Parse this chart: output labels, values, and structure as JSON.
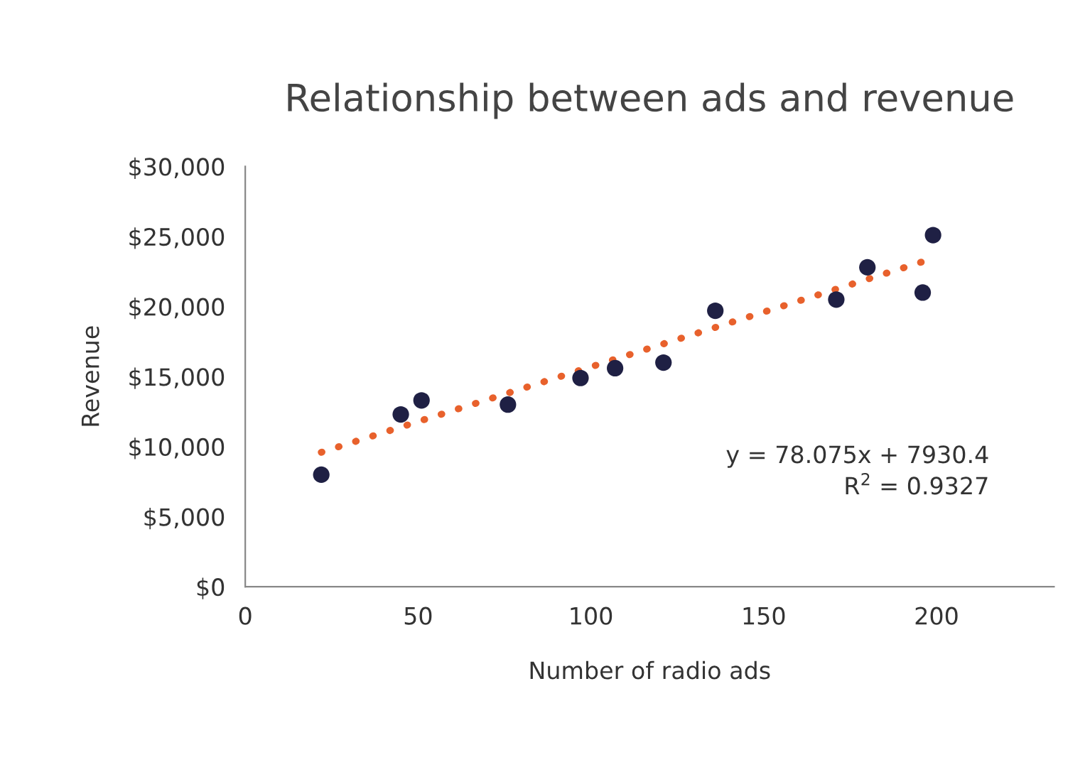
{
  "chart_data": {
    "type": "scatter",
    "title": "Relationship between ads and revenue",
    "xlabel": "Number of radio ads",
    "ylabel": "Revenue",
    "series": [
      {
        "color": "#1f2044",
        "marker": "circle",
        "x": [
          22,
          45,
          51,
          76,
          97,
          107,
          121,
          136,
          171,
          180,
          196,
          199
        ],
        "values": [
          8000,
          12300,
          13300,
          13000,
          14900,
          15600,
          16000,
          19700,
          20500,
          22800,
          21000,
          25100
        ]
      },
      {
        "type": "line",
        "color": "#e8612c",
        "line_style": "dotted",
        "marker": "none",
        "x": [
          22,
          196
        ],
        "values": [
          9600,
          23200
        ]
      }
    ],
    "xlim": [
      0,
      234
    ],
    "xticks": [
      0,
      50,
      100,
      150,
      200
    ],
    "ylim": [
      0,
      30000
    ],
    "yticks": [
      {
        "value": 0,
        "label": "$0"
      },
      {
        "value": 5000,
        "label": "$5,000"
      },
      {
        "value": 10000,
        "label": "$10,000"
      },
      {
        "value": 15000,
        "label": "$15,000"
      },
      {
        "value": 20000,
        "label": "$20,000"
      },
      {
        "value": 25000,
        "label": "$25,000"
      },
      {
        "value": 30000,
        "label": "$30,000"
      }
    ],
    "annotations": [
      "y = 78.075x + 7930.4",
      "R$^{2}$ = 0.9327"
    ],
    "grid": false,
    "legend": false
  }
}
